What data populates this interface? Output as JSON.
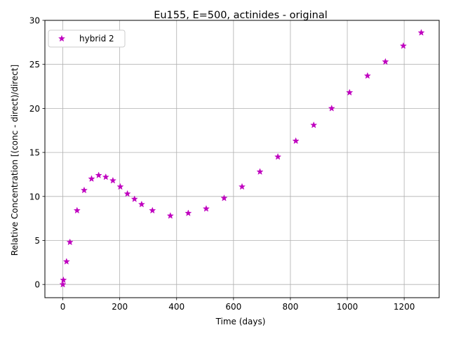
{
  "chart_data": {
    "type": "scatter",
    "title": "Eu155, E=500, actinides - original",
    "xlabel": "Time (days)",
    "ylabel": "Relative Concentration [(conc - direct)/direct]",
    "xlim": [
      -63,
      1323
    ],
    "ylim": [
      -1.5,
      30
    ],
    "xticks": [
      0,
      200,
      400,
      600,
      800,
      1000,
      1200
    ],
    "yticks": [
      0,
      5,
      10,
      15,
      20,
      25,
      30
    ],
    "grid": true,
    "legend_position": "upper-left",
    "series": [
      {
        "name": "hybrid 2",
        "color": "#bf00bf",
        "marker": "star",
        "x": [
          0,
          2,
          13,
          25,
          50,
          75,
          101,
          126,
          151,
          176,
          202,
          227,
          252,
          277,
          315,
          378,
          441,
          504,
          567,
          630,
          693,
          756,
          819,
          882,
          945,
          1008,
          1071,
          1134,
          1197,
          1260
        ],
        "y": [
          0.0,
          0.5,
          2.6,
          4.8,
          8.4,
          10.7,
          12.0,
          12.4,
          12.2,
          11.8,
          11.1,
          10.3,
          9.7,
          9.1,
          8.4,
          7.8,
          8.1,
          8.6,
          9.8,
          11.1,
          12.8,
          14.5,
          16.3,
          18.1,
          20.0,
          21.8,
          23.7,
          25.3,
          27.1,
          28.6
        ]
      }
    ]
  }
}
